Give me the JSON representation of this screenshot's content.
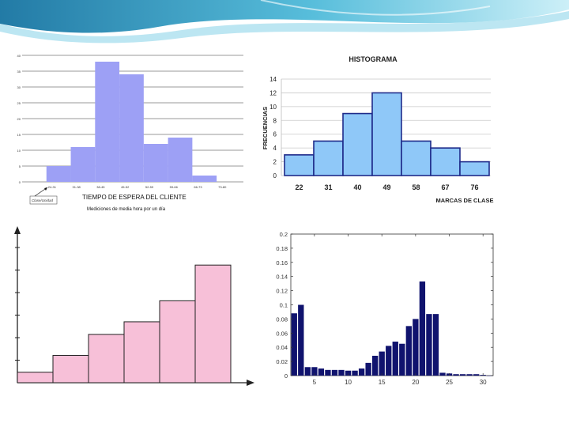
{
  "slide": {
    "accent_color": "#7fd3e8"
  },
  "chart_data": [
    {
      "type": "bar",
      "title": "",
      "xlabel": "TIEMPO DE ESPERA DEL CLIENTE",
      "subtitle": "Mediciones de media hora por un día",
      "annotation": "Clase/Unidad",
      "ylim": [
        0,
        40
      ],
      "y_ticks": [
        "0",
        "5",
        "10",
        "15",
        "20",
        "25",
        "30",
        "35",
        "40"
      ],
      "categories": [
        "24-31",
        "31-38",
        "38-45",
        "45-52",
        "52-59",
        "59-66",
        "66-73",
        "73-80"
      ],
      "values": [
        5,
        11,
        38,
        34,
        12,
        14,
        2,
        0
      ],
      "bar_color": "#9da0f5",
      "grid": true
    },
    {
      "type": "bar",
      "title": "HISTOGRAMA",
      "xlabel": "MARCAS DE CLASE",
      "ylabel": "FRECUENCIAS",
      "ylim": [
        0,
        14
      ],
      "y_ticks": [
        "0",
        "2",
        "4",
        "6",
        "8",
        "10",
        "12",
        "14"
      ],
      "categories": [
        "22",
        "31",
        "40",
        "49",
        "58",
        "67",
        "76"
      ],
      "values": [
        3,
        5,
        9,
        12,
        5,
        4,
        2
      ],
      "bar_color": "#8fc8f8",
      "bar_edge": "#1f2b8a",
      "grid": true
    },
    {
      "type": "bar",
      "title": "",
      "values": [
        0.5,
        1.3,
        2.3,
        2.9,
        3.9,
        5.6
      ],
      "ylim": [
        0,
        7
      ],
      "bar_color": "#f7c0d8",
      "grid": false
    },
    {
      "type": "bar",
      "title": "",
      "xlim": [
        1.5,
        31.5
      ],
      "ylim": [
        0,
        0.2
      ],
      "x_ticks": [
        "5",
        "10",
        "15",
        "20",
        "25",
        "30"
      ],
      "y_ticks": [
        "0",
        "0.02",
        "0.04",
        "0.06",
        "0.08",
        "0.1",
        "0.12",
        "0.14",
        "0.16",
        "0.18",
        "0.2"
      ],
      "x": [
        2,
        3,
        4,
        5,
        6,
        7,
        8,
        9,
        10,
        11,
        12,
        13,
        14,
        15,
        16,
        17,
        18,
        19,
        20,
        21,
        22,
        23,
        24,
        25,
        26,
        27,
        28,
        29,
        30,
        31
      ],
      "values": [
        0.088,
        0.1,
        0.012,
        0.012,
        0.01,
        0.008,
        0.008,
        0.008,
        0.007,
        0.007,
        0.01,
        0.018,
        0.028,
        0.034,
        0.042,
        0.048,
        0.045,
        0.07,
        0.08,
        0.133,
        0.087,
        0.087,
        0.004,
        0.003,
        0.002,
        0.002,
        0.002,
        0.002,
        0.001,
        0
      ],
      "bar_color": "#10136e",
      "grid": false
    }
  ]
}
